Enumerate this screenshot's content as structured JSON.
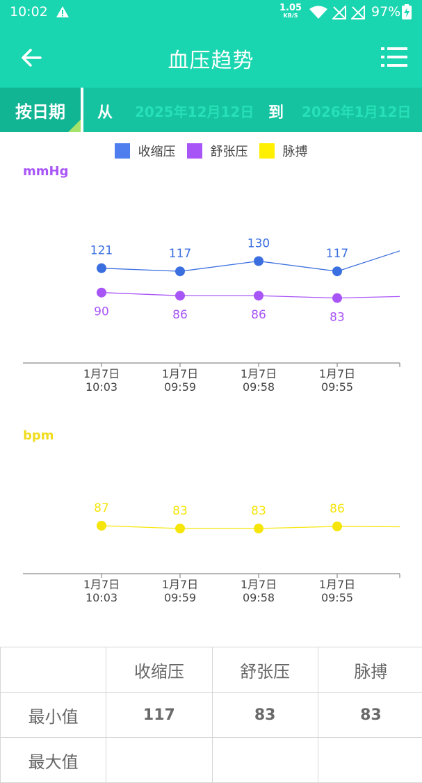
{
  "status_bar": {
    "time": "10:02",
    "net_speed_value": "1.05",
    "net_speed_unit": "KB/S",
    "battery": "97%"
  },
  "app_bar": {
    "title": "血压趋势",
    "back_icon": "arrow-left-icon",
    "menu_icon": "list-menu-icon"
  },
  "filter": {
    "mode_label": "按日期",
    "from_label": "从",
    "date_from": "2025年12月12日",
    "to_label": "到",
    "date_to": "2026年1月12日"
  },
  "colors": {
    "primary": "#1ad6b0",
    "systolic": "#3b6fe0",
    "diastolic": "#a855f7",
    "pulse": "#f5e50a"
  },
  "legend": [
    {
      "label": "收缩压",
      "color": "#4f7fef"
    },
    {
      "label": "舒张压",
      "color": "#a855f7"
    },
    {
      "label": "脉搏",
      "color": "#ffef00"
    }
  ],
  "chart_data": [
    {
      "type": "line",
      "ylabel": "mmHg",
      "x": [
        "1月7日 10:03",
        "1月7日 09:59",
        "1月7日 09:58",
        "1月7日 09:55"
      ],
      "x_label_lines": [
        [
          "1月7日",
          "10:03"
        ],
        [
          "1月7日",
          "09:59"
        ],
        [
          "1月7日",
          "09:58"
        ],
        [
          "1月7日",
          "09:55"
        ]
      ],
      "series": [
        {
          "name": "收缩压",
          "values": [
            121,
            117,
            130,
            117
          ],
          "color": "#3b6fe0"
        },
        {
          "name": "舒张压",
          "values": [
            90,
            86,
            86,
            83
          ],
          "color": "#a855f7"
        }
      ],
      "continues_right": true,
      "grid": false
    },
    {
      "type": "line",
      "ylabel": "bpm",
      "x": [
        "1月7日 10:03",
        "1月7日 09:59",
        "1月7日 09:58",
        "1月7日 09:55"
      ],
      "x_label_lines": [
        [
          "1月7日",
          "10:03"
        ],
        [
          "1月7日",
          "09:59"
        ],
        [
          "1月7日",
          "09:58"
        ],
        [
          "1月7日",
          "09:55"
        ]
      ],
      "series": [
        {
          "name": "脉搏",
          "values": [
            87,
            83,
            83,
            86
          ],
          "color": "#f5e50a"
        }
      ],
      "continues_right": true,
      "grid": false
    }
  ],
  "stats": {
    "headers": [
      "",
      "收缩压",
      "舒张压",
      "脉搏"
    ],
    "rows": [
      {
        "label": "最小值",
        "values": [
          "117",
          "83",
          "83"
        ]
      },
      {
        "label": "最大值",
        "values": [
          "",
          "",
          ""
        ]
      }
    ]
  }
}
